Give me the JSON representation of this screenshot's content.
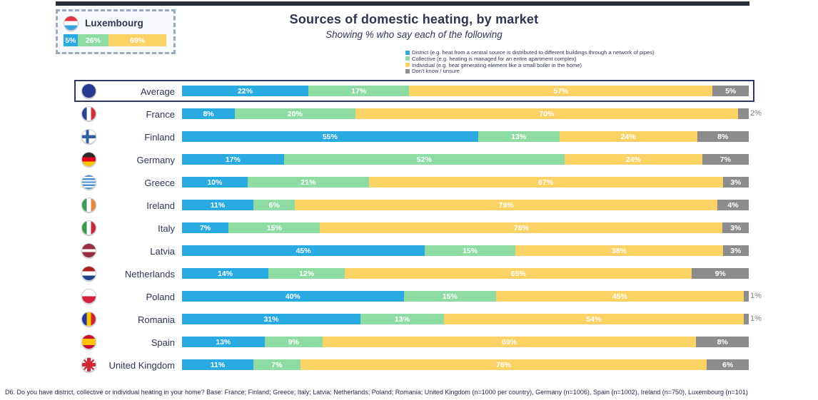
{
  "callout": {
    "country": "Luxembourg",
    "flag": "luxembourg",
    "segments": [
      {
        "name": "District",
        "value": 5,
        "label": "5%"
      },
      {
        "name": "Collective",
        "value": 26,
        "label": "26%"
      },
      {
        "name": "Individual",
        "value": 69,
        "label": "69%"
      }
    ]
  },
  "header": {
    "title": "Sources of domestic heating, by market",
    "subtitle": "Showing % who say each of the following"
  },
  "legend": [
    {
      "label": "District (e.g. heat from a central source is distributed to different buildings through a network of pipes)",
      "color": "#29ABE2"
    },
    {
      "label": "Collective (e.g. heating is managed for an entire apartment complex)",
      "color": "#8FDCA3"
    },
    {
      "label": "Individual (e.g. heat generating element like a small boiler in the home)",
      "color": "#FBD265"
    },
    {
      "label": "Don't know / unsure",
      "color": "#8C8C8C"
    }
  ],
  "chart_data": {
    "type": "bar",
    "orientation": "horizontal-stacked",
    "title": "Sources of domestic heating, by market",
    "subtitle": "Showing % who say each of the following",
    "xlim": [
      0,
      100
    ],
    "unit": "%",
    "legend_position": "top-right",
    "series_names": [
      "District",
      "Collective",
      "Individual",
      "Don't know / unsure"
    ],
    "palette": {
      "district": "#29ABE2",
      "collective": "#8FDCA3",
      "individual": "#FBD265",
      "dont_know": "#8C8C8C"
    },
    "rows": [
      {
        "country": "Average",
        "flag": "eu",
        "values": [
          22,
          17,
          57,
          5
        ],
        "highlight": true
      },
      {
        "country": "France",
        "flag": "france",
        "values": [
          8,
          20,
          70,
          2
        ]
      },
      {
        "country": "Finland",
        "flag": "finland",
        "values": [
          55,
          13,
          24,
          8
        ]
      },
      {
        "country": "Germany",
        "flag": "germany",
        "values": [
          17,
          52,
          24,
          7
        ]
      },
      {
        "country": "Greece",
        "flag": "greece",
        "values": [
          10,
          21,
          67,
          3
        ]
      },
      {
        "country": "Ireland",
        "flag": "ireland",
        "values": [
          11,
          6,
          79,
          4
        ]
      },
      {
        "country": "Italy",
        "flag": "italy",
        "values": [
          7,
          15,
          76,
          3
        ]
      },
      {
        "country": "Latvia",
        "flag": "latvia",
        "values": [
          45,
          15,
          38,
          3
        ]
      },
      {
        "country": "Netherlands",
        "flag": "netherlands",
        "values": [
          14,
          12,
          65,
          9
        ]
      },
      {
        "country": "Poland",
        "flag": "poland",
        "values": [
          40,
          15,
          45,
          1
        ]
      },
      {
        "country": "Romania",
        "flag": "romania",
        "values": [
          31,
          13,
          54,
          1
        ]
      },
      {
        "country": "Spain",
        "flag": "spain",
        "values": [
          13,
          9,
          69,
          8
        ]
      },
      {
        "country": "United Kingdom",
        "flag": "uk",
        "values": [
          11,
          7,
          76,
          6
        ]
      }
    ]
  },
  "footer": {
    "note": "D6. Do you have district, collective or individual heating in your home? Base: France; Finland; Greece; Italy; Latvia; Netherlands; Poland; Romania; United Kingdom (n=1000 per country), Germany (n=1006), Spain (n=1002), Ireland (n=750), Luxembourg (n=101)"
  }
}
